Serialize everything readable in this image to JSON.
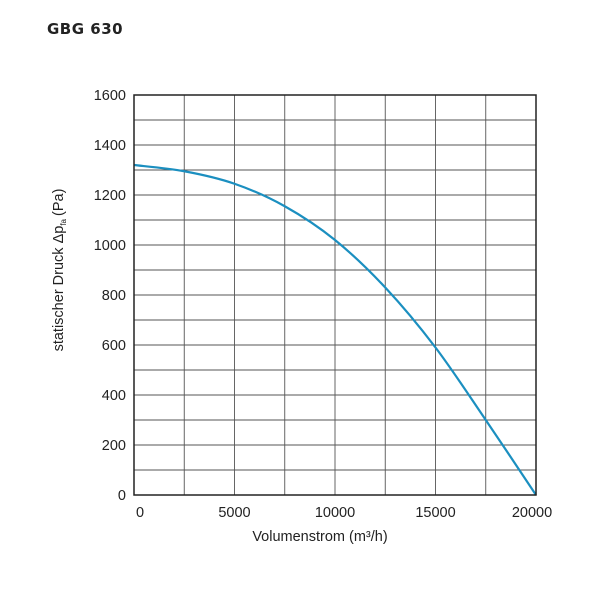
{
  "chart_data": {
    "type": "line",
    "title": "GBG 630",
    "xlabel": "Volumenstrom (m³/h)",
    "ylabel": {
      "main": "statischer Druck Δp",
      "subscript": "fa",
      "unit": "(Pa)"
    },
    "xlim": [
      0,
      20000
    ],
    "ylim": [
      0,
      1600
    ],
    "xticks": [
      0,
      5000,
      10000,
      15000,
      20000
    ],
    "yticks": [
      0,
      200,
      400,
      600,
      800,
      1000,
      1200,
      1400,
      1600
    ],
    "x_minor_step": 2500,
    "y_minor_step": 100,
    "grid": true,
    "series": [
      {
        "name": "GBG 630",
        "color": "#1b8fc0",
        "x": [
          0,
          2500,
          5000,
          7500,
          10000,
          12500,
          15000,
          17500,
          20000
        ],
        "y": [
          1320,
          1295,
          1245,
          1155,
          1020,
          830,
          590,
          300,
          0
        ]
      }
    ]
  }
}
